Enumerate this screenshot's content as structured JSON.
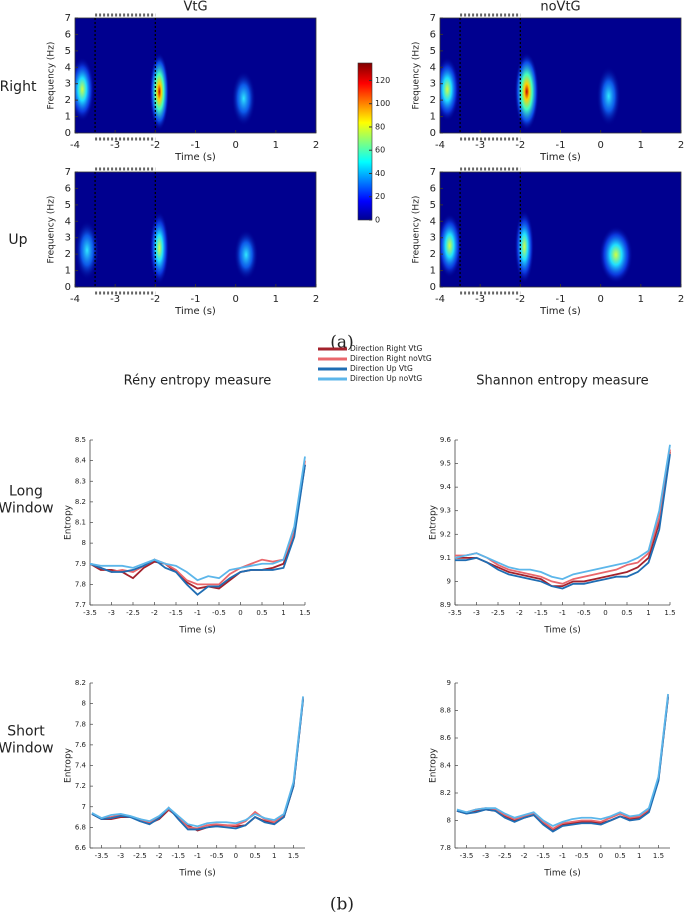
{
  "captions": [
    "(a)",
    "(b)"
  ],
  "chart_data": [
    {
      "type": "heatmap",
      "title": "VtG",
      "row_label": "Right",
      "xlabel": "Time (s)",
      "ylabel": "Frequency (Hz)",
      "xlim": [
        -4,
        2
      ],
      "ylim": [
        0,
        7
      ],
      "xticks": [
        -4,
        -3,
        -2,
        -1,
        0,
        1,
        2
      ],
      "yticks": [
        0,
        1,
        2,
        3,
        4,
        5,
        6,
        7
      ],
      "window": [
        -3.5,
        -2
      ]
    },
    {
      "type": "heatmap",
      "title": "noVtG",
      "xlabel": "Time (s)",
      "ylabel": "Frequency (Hz)",
      "xlim": [
        -4,
        2
      ],
      "ylim": [
        0,
        7
      ],
      "xticks": [
        -4,
        -3,
        -2,
        -1,
        0,
        1,
        2
      ],
      "yticks": [
        0,
        1,
        2,
        3,
        4,
        5,
        6,
        7
      ],
      "window": [
        -3.5,
        -2
      ]
    },
    {
      "type": "heatmap",
      "row_label": "Up",
      "xlabel": "Time (s)",
      "ylabel": "Frequency (Hz)",
      "xlim": [
        -4,
        2
      ],
      "ylim": [
        0,
        7
      ],
      "xticks": [
        -4,
        -3,
        -2,
        -1,
        0,
        1,
        2
      ],
      "yticks": [
        0,
        1,
        2,
        3,
        4,
        5,
        6,
        7
      ],
      "window": [
        -3.5,
        -2
      ]
    },
    {
      "type": "heatmap",
      "xlabel": "Time (s)",
      "ylabel": "Frequency (Hz)",
      "xlim": [
        -4,
        2
      ],
      "ylim": [
        0,
        7
      ],
      "xticks": [
        -4,
        -3,
        -2,
        -1,
        0,
        1,
        2
      ],
      "yticks": [
        0,
        1,
        2,
        3,
        4,
        5,
        6,
        7
      ],
      "window": [
        -3.5,
        -2
      ]
    },
    {
      "type": "colorbar",
      "clim": [
        0,
        135
      ],
      "ticks": [
        0,
        20,
        40,
        60,
        80,
        100,
        120
      ]
    },
    {
      "type": "line",
      "title": "Rény entropy measure",
      "row_label": "Long Window",
      "xlabel": "Time (s)",
      "ylabel": "Entropy",
      "xlim": [
        -3.5,
        1.5
      ],
      "ylim": [
        7.7,
        8.5
      ],
      "xticks": [
        -3.5,
        -3,
        -2.5,
        -2,
        -1.5,
        -1,
        -0.5,
        0,
        0.5,
        1,
        1.5
      ],
      "yticks": [
        7.7,
        7.8,
        7.9,
        8,
        8.1,
        8.2,
        8.3,
        8.4,
        8.5
      ],
      "x": [
        -3.5,
        -3.25,
        -3,
        -2.75,
        -2.5,
        -2.25,
        -2,
        -1.75,
        -1.5,
        -1.25,
        -1,
        -0.75,
        -0.5,
        -0.25,
        0,
        0.25,
        0.5,
        0.75,
        1,
        1.25,
        1.5
      ],
      "series": [
        {
          "name": "Direction Right VtG",
          "color": "#a3222c",
          "values": [
            7.9,
            7.87,
            7.87,
            7.86,
            7.83,
            7.88,
            7.91,
            7.9,
            7.86,
            7.81,
            7.78,
            7.79,
            7.78,
            7.82,
            7.86,
            7.87,
            7.87,
            7.88,
            7.9,
            8.05,
            8.38
          ]
        },
        {
          "name": "Direction Right noVtG",
          "color": "#e9676c",
          "values": [
            7.9,
            7.88,
            7.86,
            7.87,
            7.86,
            7.89,
            7.92,
            7.9,
            7.87,
            7.82,
            7.8,
            7.8,
            7.8,
            7.85,
            7.88,
            7.9,
            7.92,
            7.91,
            7.92,
            8.05,
            8.4
          ]
        },
        {
          "name": "Direction Up VtG",
          "color": "#1f6db3",
          "values": [
            7.9,
            7.88,
            7.86,
            7.86,
            7.87,
            7.89,
            7.92,
            7.88,
            7.86,
            7.8,
            7.75,
            7.79,
            7.79,
            7.83,
            7.86,
            7.87,
            7.87,
            7.87,
            7.88,
            8.03,
            8.38
          ]
        },
        {
          "name": "Direction Up noVtG",
          "color": "#5cb6ea",
          "values": [
            7.9,
            7.89,
            7.89,
            7.89,
            7.88,
            7.9,
            7.92,
            7.9,
            7.89,
            7.86,
            7.82,
            7.84,
            7.83,
            7.87,
            7.88,
            7.89,
            7.9,
            7.9,
            7.92,
            8.08,
            8.42
          ]
        }
      ]
    },
    {
      "type": "line",
      "title": "Shannon entropy measure",
      "xlabel": "Time (s)",
      "ylabel": "Entropy",
      "xlim": [
        -3.5,
        1.5
      ],
      "ylim": [
        8.9,
        9.6
      ],
      "xticks": [
        -3.5,
        -3,
        -2.5,
        -2,
        -1.5,
        -1,
        -0.5,
        0,
        0.5,
        1,
        1.5
      ],
      "yticks": [
        8.9,
        9,
        9.1,
        9.2,
        9.3,
        9.4,
        9.5,
        9.6
      ],
      "x": [
        -3.5,
        -3.25,
        -3,
        -2.75,
        -2.5,
        -2.25,
        -2,
        -1.75,
        -1.5,
        -1.25,
        -1,
        -0.75,
        -0.5,
        -0.25,
        0,
        0.25,
        0.5,
        0.75,
        1,
        1.25,
        1.5
      ],
      "series": [
        {
          "name": "Direction Right VtG",
          "color": "#a3222c",
          "values": [
            9.1,
            9.1,
            9.1,
            9.08,
            9.06,
            9.04,
            9.03,
            9.02,
            9.01,
            8.98,
            8.98,
            9.0,
            9.0,
            9.01,
            9.02,
            9.03,
            9.04,
            9.06,
            9.1,
            9.25,
            9.55
          ]
        },
        {
          "name": "Direction Right noVtG",
          "color": "#e9676c",
          "values": [
            9.11,
            9.11,
            9.12,
            9.1,
            9.07,
            9.05,
            9.04,
            9.03,
            9.02,
            9.0,
            8.99,
            9.01,
            9.02,
            9.03,
            9.04,
            9.05,
            9.07,
            9.08,
            9.12,
            9.27,
            9.56
          ]
        },
        {
          "name": "Direction Up VtG",
          "color": "#1f6db3",
          "values": [
            9.09,
            9.09,
            9.1,
            9.08,
            9.05,
            9.03,
            9.02,
            9.01,
            9.0,
            8.98,
            8.97,
            8.99,
            8.99,
            9.0,
            9.01,
            9.02,
            9.02,
            9.04,
            9.08,
            9.22,
            9.54
          ]
        },
        {
          "name": "Direction Up noVtG",
          "color": "#5cb6ea",
          "values": [
            9.1,
            9.11,
            9.12,
            9.1,
            9.08,
            9.06,
            9.05,
            9.05,
            9.04,
            9.02,
            9.01,
            9.03,
            9.04,
            9.05,
            9.06,
            9.07,
            9.08,
            9.1,
            9.13,
            9.3,
            9.58
          ]
        }
      ]
    },
    {
      "type": "line",
      "row_label": "Short Window",
      "xlabel": "Time (s)",
      "ylabel": "Entropy",
      "xlim": [
        -3.8,
        1.8
      ],
      "ylim": [
        6.6,
        8.2
      ],
      "xticks": [
        -3.5,
        -3,
        -2.5,
        -2,
        -1.5,
        -1,
        -0.5,
        0,
        0.5,
        1,
        1.5
      ],
      "yticks": [
        6.6,
        6.8,
        7,
        7.2,
        7.4,
        7.6,
        7.8,
        8,
        8.2
      ],
      "x": [
        -3.75,
        -3.5,
        -3.25,
        -3,
        -2.75,
        -2.5,
        -2.25,
        -2,
        -1.75,
        -1.5,
        -1.25,
        -1,
        -0.75,
        -0.5,
        -0.25,
        0,
        0.25,
        0.5,
        0.75,
        1,
        1.25,
        1.5,
        1.75
      ],
      "series": [
        {
          "name": "Direction Right VtG",
          "color": "#a3222c",
          "values": [
            6.93,
            6.88,
            6.88,
            6.9,
            6.9,
            6.88,
            6.84,
            6.88,
            6.97,
            6.9,
            6.82,
            6.77,
            6.8,
            6.82,
            6.82,
            6.81,
            6.82,
            6.9,
            6.86,
            6.84,
            6.9,
            7.2,
            8.05
          ]
        },
        {
          "name": "Direction Right noVtG",
          "color": "#e9676c",
          "values": [
            6.93,
            6.89,
            6.9,
            6.92,
            6.9,
            6.87,
            6.85,
            6.9,
            6.98,
            6.9,
            6.8,
            6.79,
            6.82,
            6.83,
            6.82,
            6.82,
            6.86,
            6.95,
            6.88,
            6.85,
            6.92,
            7.22,
            8.06
          ]
        },
        {
          "name": "Direction Up VtG",
          "color": "#1f6db3",
          "values": [
            6.93,
            6.88,
            6.89,
            6.91,
            6.9,
            6.86,
            6.83,
            6.89,
            6.99,
            6.88,
            6.78,
            6.78,
            6.8,
            6.81,
            6.8,
            6.79,
            6.82,
            6.9,
            6.85,
            6.83,
            6.9,
            7.2,
            8.04
          ]
        },
        {
          "name": "Direction Up noVtG",
          "color": "#5cb6ea",
          "values": [
            6.94,
            6.89,
            6.92,
            6.93,
            6.91,
            6.88,
            6.86,
            6.91,
            6.99,
            6.91,
            6.83,
            6.81,
            6.84,
            6.85,
            6.85,
            6.84,
            6.87,
            6.93,
            6.89,
            6.87,
            6.93,
            7.24,
            8.07
          ]
        }
      ]
    },
    {
      "type": "line",
      "xlabel": "Time (s)",
      "ylabel": "Entropy",
      "xlim": [
        -3.8,
        1.8
      ],
      "ylim": [
        7.8,
        9
      ],
      "xticks": [
        -3.5,
        -3,
        -2.5,
        -2,
        -1.5,
        -1,
        -0.5,
        0,
        0.5,
        1,
        1.5
      ],
      "yticks": [
        7.8,
        8,
        8.2,
        8.4,
        8.6,
        8.8,
        9
      ],
      "x": [
        -3.75,
        -3.5,
        -3.25,
        -3,
        -2.75,
        -2.5,
        -2.25,
        -2,
        -1.75,
        -1.5,
        -1.25,
        -1,
        -0.75,
        -0.5,
        -0.25,
        0,
        0.25,
        0.5,
        0.75,
        1,
        1.25,
        1.5,
        1.75
      ],
      "series": [
        {
          "name": "Direction Right VtG",
          "color": "#a3222c",
          "values": [
            8.07,
            8.05,
            8.07,
            8.08,
            8.07,
            8.03,
            8.0,
            8.02,
            8.04,
            7.98,
            7.93,
            7.97,
            7.98,
            7.99,
            7.99,
            7.98,
            8.0,
            8.03,
            8.01,
            8.02,
            8.07,
            8.3,
            8.9
          ]
        },
        {
          "name": "Direction Right noVtG",
          "color": "#e9676c",
          "values": [
            8.07,
            8.06,
            8.08,
            8.09,
            8.08,
            8.04,
            8.01,
            8.03,
            8.05,
            7.99,
            7.94,
            7.98,
            7.99,
            8.0,
            8.0,
            7.99,
            8.02,
            8.05,
            8.02,
            8.03,
            8.08,
            8.31,
            8.91
          ]
        },
        {
          "name": "Direction Up VtG",
          "color": "#1f6db3",
          "values": [
            8.07,
            8.05,
            8.06,
            8.08,
            8.07,
            8.02,
            7.99,
            8.02,
            8.04,
            7.97,
            7.92,
            7.96,
            7.97,
            7.98,
            7.98,
            7.97,
            8.0,
            8.03,
            8.0,
            8.01,
            8.06,
            8.29,
            8.9
          ]
        },
        {
          "name": "Direction Up noVtG",
          "color": "#5cb6ea",
          "values": [
            8.08,
            8.06,
            8.08,
            8.09,
            8.09,
            8.05,
            8.02,
            8.04,
            8.06,
            8.0,
            7.96,
            7.99,
            8.01,
            8.02,
            8.02,
            8.01,
            8.03,
            8.06,
            8.03,
            8.04,
            8.09,
            8.32,
            8.92
          ]
        }
      ]
    }
  ]
}
